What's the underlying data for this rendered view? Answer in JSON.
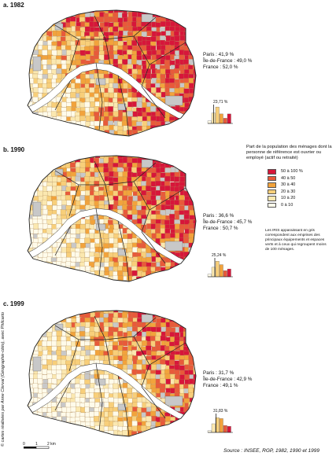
{
  "panels": [
    {
      "label": "a. 1982",
      "stats": [
        "Paris : 41,9 %",
        "Île-de-France : 49,0 %",
        "France : 52,0 %"
      ],
      "median": "23,71 %",
      "hist": [
        0.15,
        0.6,
        0.95,
        0.55,
        0.3,
        0.55
      ]
    },
    {
      "label": "b. 1990",
      "stats": [
        "Paris : 36,6 %",
        "Île-de-France : 45,7 %",
        "France : 50,7 %"
      ],
      "median": "25,24 %",
      "hist": [
        0.15,
        0.55,
        0.9,
        0.7,
        0.35,
        0.45
      ]
    },
    {
      "label": "c. 1999",
      "stats": [
        "Paris : 31,7 %",
        "Île-de-France : 42,9 %",
        "France : 49,1 %"
      ],
      "median": "31,83 %",
      "hist": [
        0.1,
        0.5,
        0.85,
        0.8,
        0.4,
        0.35
      ]
    }
  ],
  "legend": {
    "title": "Part de la population des ménages dont la personne de référence est ouvrier ou employé (actif ou retraité)",
    "classes": [
      {
        "label": "50 à 100 %",
        "color": "#d7163a"
      },
      {
        "label": "40 à 50",
        "color": "#e85a3a"
      },
      {
        "label": "30 à 40",
        "color": "#f2a33c"
      },
      {
        "label": "20 à 30",
        "color": "#f8cf7a"
      },
      {
        "label": "10 à 20",
        "color": "#fbe8b0"
      },
      {
        "label": "0 à 10",
        "color": "#fffbea"
      }
    ],
    "note": "Les IRIS apparaissant en gris correspondent aux emprises des principaux équipements et espaces verts et à ceux qui regroupent moins de 100 ménages.",
    "grey": "#c8c8c8",
    "river": "#ffffff"
  },
  "scale": {
    "zero": "0",
    "one": "1",
    "two": "2 km"
  },
  "credit": "© cartes réalisées par Anne Clerval (Géographie-cités), avec Philcarto",
  "source": "Source : INSEE, RGP, 1982, 1990 et 1999"
}
